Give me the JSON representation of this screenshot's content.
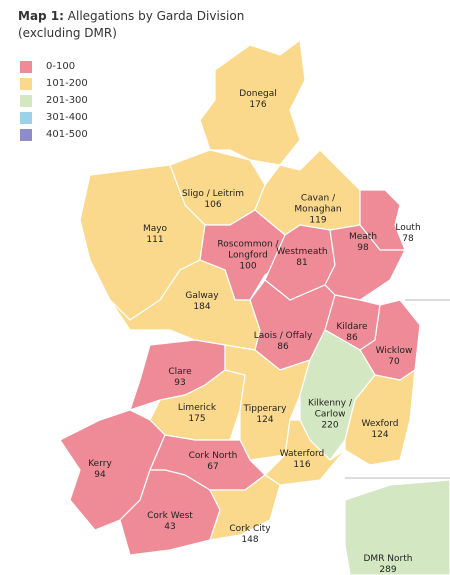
{
  "header": {
    "title_prefix": "Map 1:",
    "title": "Allegations by Garda Division",
    "subtitle": "(excluding DMR)"
  },
  "legend": [
    {
      "label": "0-100",
      "color": "#ef8b97"
    },
    {
      "label": "101-200",
      "color": "#fbd98c"
    },
    {
      "label": "201-300",
      "color": "#d3e7c3"
    },
    {
      "label": "301-400",
      "color": "#9bd2e8"
    },
    {
      "label": "401-500",
      "color": "#8e8cc9"
    }
  ],
  "regions": [
    {
      "name": "Donegal",
      "value": "176",
      "color": "#fbd98c"
    },
    {
      "name": "Sligo / Leitrim",
      "value": "106",
      "color": "#fbd98c"
    },
    {
      "name": "Mayo",
      "value": "111",
      "color": "#fbd98c"
    },
    {
      "name": "Cavan / Monaghan",
      "value": "119",
      "color": "#fbd98c"
    },
    {
      "name": "Louth",
      "value": "78",
      "color": "#ef8b97"
    },
    {
      "name": "Roscommon / Longford",
      "value": "100",
      "color": "#ef8b97"
    },
    {
      "name": "Westmeath",
      "value": "81",
      "color": "#ef8b97"
    },
    {
      "name": "Meath",
      "value": "98",
      "color": "#ef8b97"
    },
    {
      "name": "Galway",
      "value": "184",
      "color": "#fbd98c"
    },
    {
      "name": "Laois / Offaly",
      "value": "86",
      "color": "#ef8b97"
    },
    {
      "name": "Kildare",
      "value": "86",
      "color": "#ef8b97"
    },
    {
      "name": "Wicklow",
      "value": "70",
      "color": "#ef8b97"
    },
    {
      "name": "Clare",
      "value": "93",
      "color": "#ef8b97"
    },
    {
      "name": "Limerick",
      "value": "175",
      "color": "#fbd98c"
    },
    {
      "name": "Tipperary",
      "value": "124",
      "color": "#fbd98c"
    },
    {
      "name": "Kilkenny / Carlow",
      "value": "220",
      "color": "#d3e7c3"
    },
    {
      "name": "Wexford",
      "value": "124",
      "color": "#fbd98c"
    },
    {
      "name": "Waterford",
      "value": "116",
      "color": "#fbd98c"
    },
    {
      "name": "Kerry",
      "value": "94",
      "color": "#ef8b97"
    },
    {
      "name": "Cork North",
      "value": "67",
      "color": "#ef8b97"
    },
    {
      "name": "Cork West",
      "value": "43",
      "color": "#ef8b97"
    },
    {
      "name": "Cork City",
      "value": "148",
      "color": "#fbd98c"
    },
    {
      "name": "DMR North",
      "value": "289",
      "color": "#d3e7c3"
    }
  ]
}
